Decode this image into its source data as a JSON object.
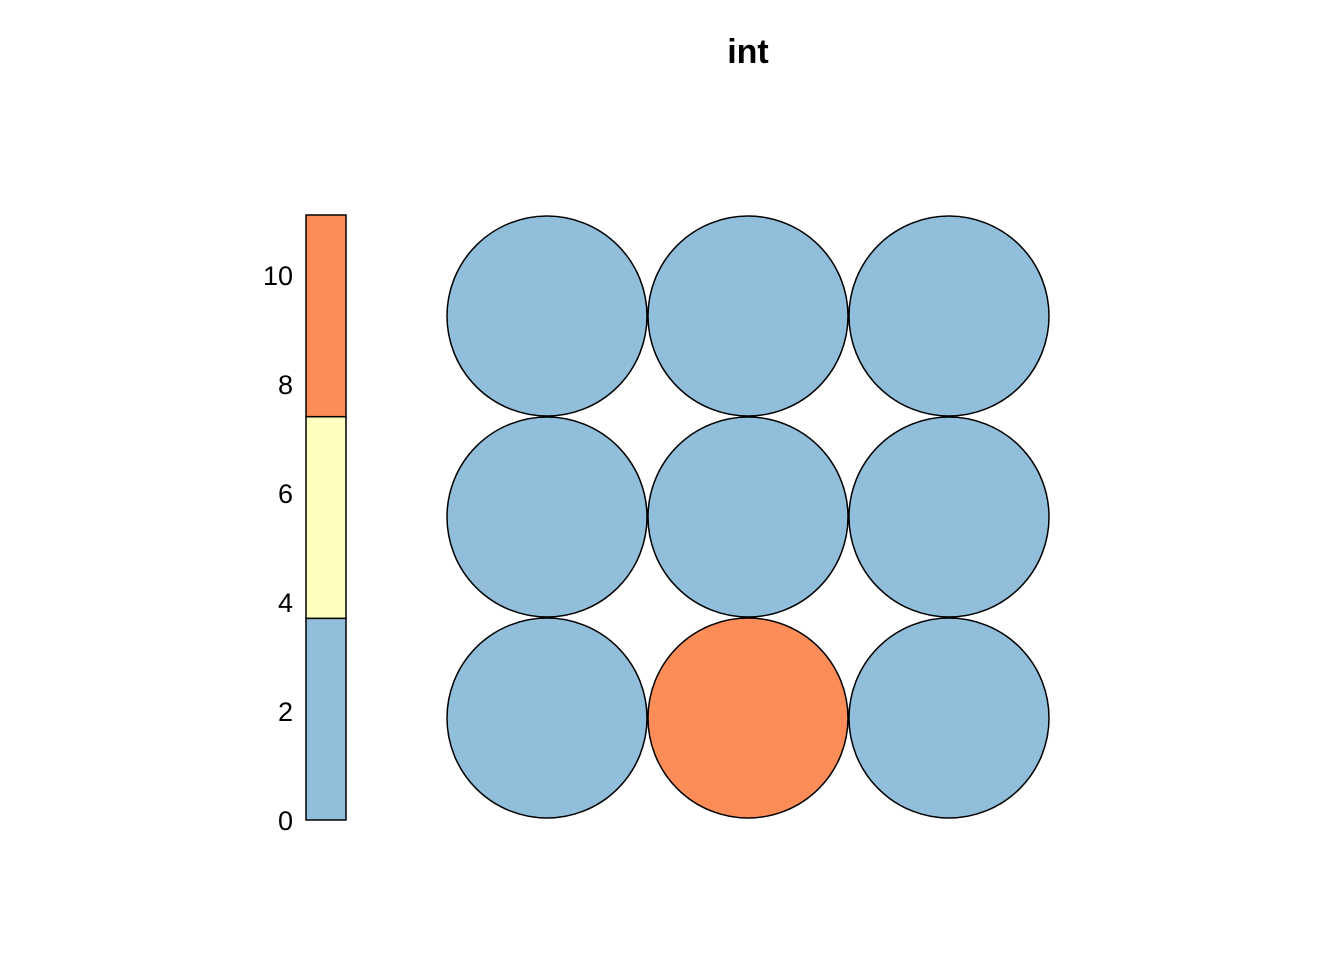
{
  "chart_data": {
    "type": "heatmap",
    "title": "int",
    "grid": {
      "rows": 3,
      "cols": 3,
      "shape": "circle"
    },
    "cells": [
      [
        2,
        2,
        2
      ],
      [
        2,
        2,
        2
      ],
      [
        2,
        10,
        2
      ]
    ],
    "color_scale": {
      "ticks": [
        0,
        2,
        4,
        6,
        8,
        10
      ],
      "range": [
        0,
        11.1
      ],
      "bins": [
        {
          "from": 0,
          "to": 3.7,
          "color": "#91BFDB"
        },
        {
          "from": 3.7,
          "to": 7.4,
          "color": "#FFFFBF"
        },
        {
          "from": 7.4,
          "to": 11.1,
          "color": "#FC8D59"
        }
      ],
      "placement": "left"
    }
  }
}
